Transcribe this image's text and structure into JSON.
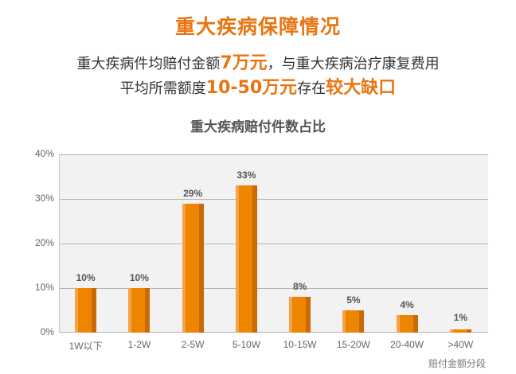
{
  "header": {
    "title": "重大疾病保障情况",
    "line1": {
      "prefix": "重大疾病件均赔付金额",
      "highlight": "7万元",
      "suffix": "，与重大疾病治疗康复费用"
    },
    "line2": {
      "prefix": "平均所需额度",
      "highlight1": "10-50万元",
      "middle": "存在",
      "highlight2": "较大缺口"
    }
  },
  "colors": {
    "accent": "#e87511",
    "bar": "#ee8500",
    "bar_highlight": "#f5a347",
    "bar_shadow": "#c86a08",
    "plot_bg": "#f2f2f2",
    "grid": "#b4b4b4"
  },
  "chart_data": {
    "type": "bar",
    "title": "重大疾病赔付件数占比",
    "xlabel": "赔付金额分段",
    "ylabel": "",
    "categories": [
      "1W以下",
      "1-2W",
      "2-5W",
      "5-10W",
      "10-15W",
      "15-20W",
      "20-40W",
      ">40W"
    ],
    "values": [
      10,
      10,
      29,
      33,
      8,
      5,
      4,
      1
    ],
    "value_labels": [
      "10%",
      "10%",
      "29%",
      "33%",
      "8%",
      "5%",
      "4%",
      "1%"
    ],
    "ylim": [
      0,
      40
    ],
    "yticks": [
      "0%",
      "10%",
      "20%",
      "30%",
      "40%"
    ],
    "grid": true,
    "legend": "none"
  }
}
